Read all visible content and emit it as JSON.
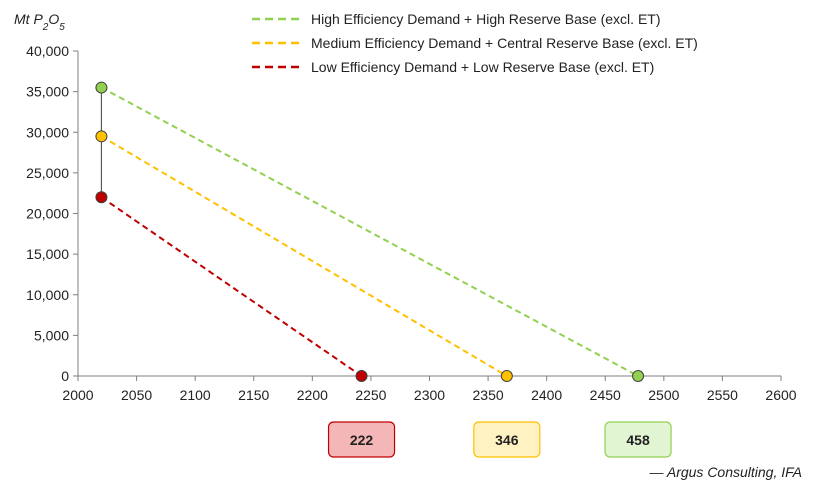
{
  "chart_data": {
    "type": "line",
    "ylabel_main": "Mt P",
    "ylabel_sub1": "2",
    "ylabel_mid": "O",
    "ylabel_sub2": "5",
    "xlim": [
      2000,
      2600
    ],
    "ylim": [
      0,
      40000
    ],
    "x_ticks": [
      "2000",
      "2050",
      "2100",
      "2150",
      "2200",
      "2250",
      "2300",
      "2350",
      "2400",
      "2450",
      "2500",
      "2550",
      "2600"
    ],
    "x_tick_values": [
      2000,
      2050,
      2100,
      2150,
      2200,
      2250,
      2300,
      2350,
      2400,
      2450,
      2500,
      2550,
      2600
    ],
    "y_ticks": [
      "0",
      "5,000",
      "10,000",
      "15,000",
      "20,000",
      "25,000",
      "30,000",
      "35,000",
      "40,000"
    ],
    "y_tick_values": [
      0,
      5000,
      10000,
      15000,
      20000,
      25000,
      30000,
      35000,
      40000
    ],
    "series": [
      {
        "name": "High Efficiency Demand + High Reserve Base (excl. ET)",
        "color": "#92d050",
        "fill": "#92d050",
        "points": [
          [
            2020,
            35500
          ],
          [
            2478,
            0
          ]
        ]
      },
      {
        "name": "Medium Efficiency Demand + Central Reserve Base (excl. ET)",
        "color": "#ffc000",
        "fill": "#ffc000",
        "points": [
          [
            2020,
            29500
          ],
          [
            2366,
            0
          ]
        ]
      },
      {
        "name": "Low Efficiency Demand + Low Reserve Base (excl. ET)",
        "color": "#c00000",
        "fill": "#c00000",
        "points": [
          [
            2020,
            22000
          ],
          [
            2242,
            0
          ]
        ]
      }
    ],
    "range_bar": {
      "x": 2020,
      "y_from": 22000,
      "y_to": 35500
    },
    "badges": [
      {
        "label": "222",
        "x": 2242,
        "fill": "#f4b6b6",
        "stroke": "#c00000"
      },
      {
        "label": "346",
        "x": 2366,
        "fill": "#fff2c2",
        "stroke": "#ffc000"
      },
      {
        "label": "458",
        "x": 2478,
        "fill": "#e2f5d3",
        "stroke": "#92d050"
      }
    ]
  },
  "source": "— Argus Consulting, IFA"
}
